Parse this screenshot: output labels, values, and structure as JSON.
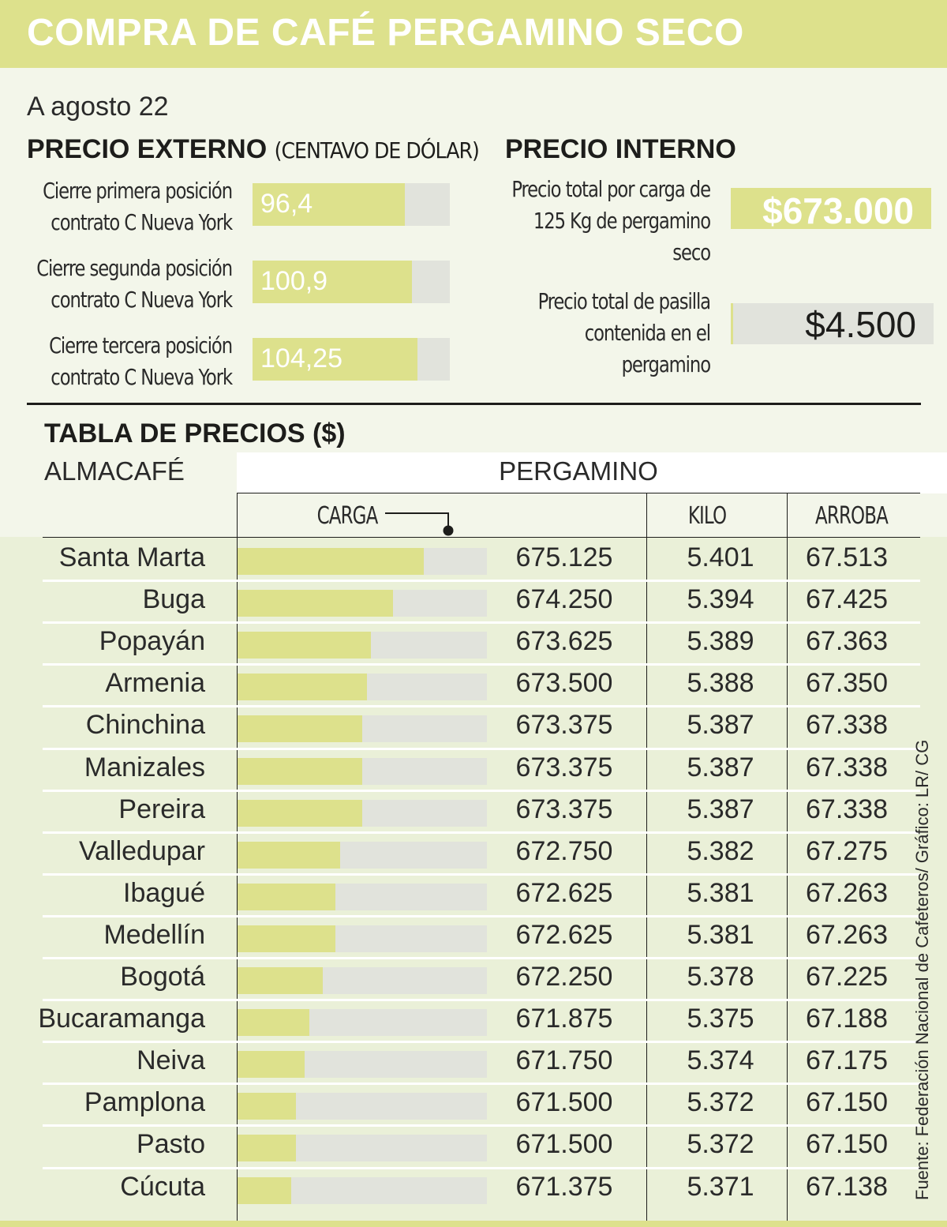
{
  "header": {
    "title": "COMPRA DE CAFÉ PERGAMINO SECO",
    "date": "A agosto 22"
  },
  "external": {
    "title": "PRECIO EXTERNO",
    "subtitle": "(CENTAVO DE DÓLAR)",
    "items": [
      {
        "label_line1": "Cierre primera posición",
        "label_line2": "contrato C Nueva York",
        "value": "96,4",
        "fill_fraction": 0.77
      },
      {
        "label_line1": "Cierre segunda posición",
        "label_line2": "contrato C Nueva York",
        "value": "100,9",
        "fill_fraction": 0.808
      },
      {
        "label_line1": "Cierre tercera posición",
        "label_line2": "contrato C Nueva York",
        "value": "104,25",
        "fill_fraction": 0.835
      }
    ]
  },
  "internal": {
    "title": "PRECIO INTERNO",
    "items": [
      {
        "label_lines": [
          "Precio total por carga de",
          "125 Kg de pergamino",
          "seco"
        ],
        "value": "$673.000"
      },
      {
        "label_lines": [
          "Precio total de pasilla",
          "contenida en el",
          "pergamino"
        ],
        "value": "$4.500"
      }
    ]
  },
  "table": {
    "title": "TABLA DE PRECIOS ($)",
    "almacafe_label": "ALMACAFÉ",
    "group_label": "PERGAMINO",
    "columns": {
      "carga": "CARGA",
      "kilo": "KILO",
      "arroba": "ARROBA"
    }
  },
  "chart_data": {
    "type": "table",
    "title": "TABLA DE PRECIOS ($)",
    "row_header": "ALMACAFÉ",
    "column_group": "PERGAMINO",
    "columns": [
      "CARGA",
      "KILO",
      "ARROBA"
    ],
    "bar_column": "CARGA",
    "bar_range": [
      669850,
      676900
    ],
    "rows": [
      {
        "city": "Santa Marta",
        "carga": 675125,
        "carga_label": "675.125",
        "kilo": "5.401",
        "arroba": "67.513"
      },
      {
        "city": "Buga",
        "carga": 674250,
        "carga_label": "674.250",
        "kilo": "5.394",
        "arroba": "67.425"
      },
      {
        "city": "Popayán",
        "carga": 673625,
        "carga_label": "673.625",
        "kilo": "5.389",
        "arroba": "67.363"
      },
      {
        "city": "Armenia",
        "carga": 673500,
        "carga_label": "673.500",
        "kilo": "5.388",
        "arroba": "67.350"
      },
      {
        "city": "Chinchina",
        "carga": 673375,
        "carga_label": "673.375",
        "kilo": "5.387",
        "arroba": "67.338"
      },
      {
        "city": "Manizales",
        "carga": 673375,
        "carga_label": "673.375",
        "kilo": "5.387",
        "arroba": "67.338"
      },
      {
        "city": "Pereira",
        "carga": 673375,
        "carga_label": "673.375",
        "kilo": "5.387",
        "arroba": "67.338"
      },
      {
        "city": "Valledupar",
        "carga": 672750,
        "carga_label": "672.750",
        "kilo": "5.382",
        "arroba": "67.275"
      },
      {
        "city": "Ibagué",
        "carga": 672625,
        "carga_label": "672.625",
        "kilo": "5.381",
        "arroba": "67.263"
      },
      {
        "city": "Medellín",
        "carga": 672625,
        "carga_label": "672.625",
        "kilo": "5.381",
        "arroba": "67.263"
      },
      {
        "city": "Bogotá",
        "carga": 672250,
        "carga_label": "672.250",
        "kilo": "5.378",
        "arroba": "67.225"
      },
      {
        "city": "Bucaramanga",
        "carga": 671875,
        "carga_label": "671.875",
        "kilo": "5.375",
        "arroba": "67.188"
      },
      {
        "city": "Neiva",
        "carga": 671750,
        "carga_label": "671.750",
        "kilo": "5.374",
        "arroba": "67.175"
      },
      {
        "city": "Pamplona",
        "carga": 671500,
        "carga_label": "671.500",
        "kilo": "5.372",
        "arroba": "67.150"
      },
      {
        "city": "Pasto",
        "carga": 671500,
        "carga_label": "671.500",
        "kilo": "5.372",
        "arroba": "67.150"
      },
      {
        "city": "Cúcuta",
        "carga": 671375,
        "carga_label": "671.375",
        "kilo": "5.371",
        "arroba": "67.138"
      }
    ]
  },
  "colors": {
    "accent": "#dde18c",
    "track": "#e1e3dc",
    "table_bg": "#eaf0d8",
    "page_bg": "#f3f6ea"
  },
  "source": "Fuente: Federación Nacional de Cafeteros/ Gráfico: LR/ CG"
}
